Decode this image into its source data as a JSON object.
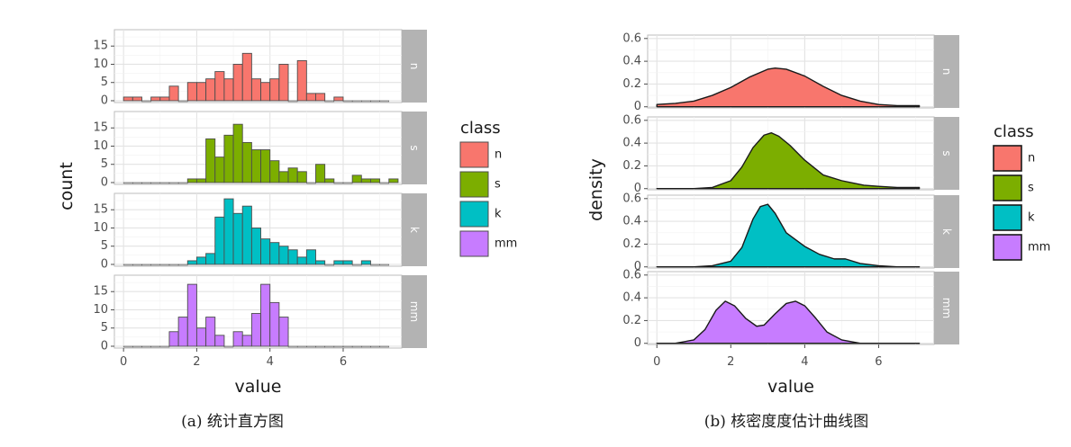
{
  "colors": {
    "n": "#f8766d",
    "s": "#7cae00",
    "k": "#00bfc4",
    "mm": "#c77cff"
  },
  "legend": {
    "title": "class",
    "items": [
      {
        "label": "n",
        "color": "#f8766d"
      },
      {
        "label": "s",
        "color": "#7cae00"
      },
      {
        "label": "k",
        "color": "#00bfc4"
      },
      {
        "label": "mm",
        "color": "#c77cff"
      }
    ]
  },
  "chart_data": [
    {
      "type": "bar",
      "caption": "(a)  统计直方图",
      "xlabel": "value",
      "ylabel": "count",
      "xlim": [
        -0.25,
        7.6
      ],
      "ylim": [
        -0.5,
        19.5
      ],
      "xticks": [
        0,
        2,
        4,
        6
      ],
      "yticks": [
        0,
        5,
        10,
        15
      ],
      "bin_width": 0.25,
      "grid": true,
      "facets": [
        {
          "name": "n",
          "color": "#f8766d",
          "bins": [
            [
              0,
              1
            ],
            [
              0.25,
              1
            ],
            [
              0.5,
              0
            ],
            [
              0.75,
              1
            ],
            [
              1,
              1
            ],
            [
              1.25,
              4
            ],
            [
              1.5,
              0
            ],
            [
              1.75,
              5
            ],
            [
              2,
              5
            ],
            [
              2.25,
              6
            ],
            [
              2.5,
              8
            ],
            [
              2.75,
              6
            ],
            [
              3,
              10
            ],
            [
              3.25,
              13
            ],
            [
              3.5,
              6
            ],
            [
              3.75,
              5
            ],
            [
              4,
              6
            ],
            [
              4.25,
              10
            ],
            [
              4.5,
              0
            ],
            [
              4.75,
              11
            ],
            [
              5,
              2
            ],
            [
              5.25,
              2
            ],
            [
              5.5,
              0
            ],
            [
              5.75,
              1
            ],
            [
              6,
              0
            ],
            [
              6.25,
              0
            ],
            [
              6.5,
              0
            ],
            [
              6.75,
              0
            ],
            [
              7,
              0
            ]
          ]
        },
        {
          "name": "s",
          "color": "#7cae00",
          "bins": [
            [
              0,
              0
            ],
            [
              0.25,
              0
            ],
            [
              0.5,
              0
            ],
            [
              0.75,
              0
            ],
            [
              1,
              0
            ],
            [
              1.25,
              0
            ],
            [
              1.5,
              0
            ],
            [
              1.75,
              1
            ],
            [
              2,
              1
            ],
            [
              2.25,
              12
            ],
            [
              2.5,
              7
            ],
            [
              2.75,
              13
            ],
            [
              3,
              16
            ],
            [
              3.25,
              11
            ],
            [
              3.5,
              9
            ],
            [
              3.75,
              9
            ],
            [
              4,
              6
            ],
            [
              4.25,
              3
            ],
            [
              4.5,
              4
            ],
            [
              4.75,
              3
            ],
            [
              5,
              0
            ],
            [
              5.25,
              5
            ],
            [
              5.5,
              1
            ],
            [
              5.75,
              0
            ],
            [
              6,
              0
            ],
            [
              6.25,
              2
            ],
            [
              6.5,
              1
            ],
            [
              6.75,
              1
            ],
            [
              7,
              0
            ],
            [
              7.25,
              1
            ]
          ]
        },
        {
          "name": "k",
          "color": "#00bfc4",
          "bins": [
            [
              0,
              0
            ],
            [
              0.25,
              0
            ],
            [
              0.5,
              0
            ],
            [
              0.75,
              0
            ],
            [
              1,
              0
            ],
            [
              1.25,
              0
            ],
            [
              1.5,
              0
            ],
            [
              1.75,
              1
            ],
            [
              2,
              2
            ],
            [
              2.25,
              3
            ],
            [
              2.5,
              13
            ],
            [
              2.75,
              18
            ],
            [
              3,
              14
            ],
            [
              3.25,
              16
            ],
            [
              3.5,
              10
            ],
            [
              3.75,
              7
            ],
            [
              4,
              6
            ],
            [
              4.25,
              5
            ],
            [
              4.5,
              4
            ],
            [
              4.75,
              2
            ],
            [
              5,
              4
            ],
            [
              5.25,
              1
            ],
            [
              5.5,
              0
            ],
            [
              5.75,
              1
            ],
            [
              6,
              1
            ],
            [
              6.25,
              0
            ],
            [
              6.5,
              1
            ],
            [
              6.75,
              0
            ],
            [
              7,
              0
            ]
          ]
        },
        {
          "name": "mm",
          "color": "#c77cff",
          "bins": [
            [
              0,
              0
            ],
            [
              0.25,
              0
            ],
            [
              0.5,
              0
            ],
            [
              0.75,
              0
            ],
            [
              1,
              0
            ],
            [
              1.25,
              4
            ],
            [
              1.5,
              8
            ],
            [
              1.75,
              17
            ],
            [
              2,
              5
            ],
            [
              2.25,
              8
            ],
            [
              2.5,
              3
            ],
            [
              2.75,
              0
            ],
            [
              3,
              4
            ],
            [
              3.25,
              3
            ],
            [
              3.5,
              9
            ],
            [
              3.75,
              17
            ],
            [
              4,
              12
            ],
            [
              4.25,
              8
            ],
            [
              4.5,
              0
            ],
            [
              4.75,
              0
            ],
            [
              5,
              0
            ],
            [
              5.25,
              0
            ],
            [
              5.5,
              0
            ],
            [
              5.75,
              0
            ],
            [
              6,
              0
            ],
            [
              6.25,
              0
            ],
            [
              6.5,
              0
            ],
            [
              6.75,
              0
            ],
            [
              7,
              0
            ]
          ]
        }
      ]
    },
    {
      "type": "area",
      "caption": "(b)  核密度度估计曲线图",
      "xlabel": "value",
      "ylabel": "density",
      "xlim": [
        -0.25,
        7.5
      ],
      "ylim": [
        -0.01,
        0.63
      ],
      "xticks": [
        0,
        2,
        4,
        6
      ],
      "yticks": [
        0,
        0.2,
        0.4,
        0.6
      ],
      "ytick_labels": [
        "0",
        "0.2",
        "0.4",
        "0.6"
      ],
      "grid": true,
      "facets": [
        {
          "name": "n",
          "color": "#f8766d",
          "x": [
            0,
            0.5,
            1,
            1.5,
            2,
            2.5,
            3,
            3.2,
            3.5,
            4,
            4.5,
            5,
            5.5,
            6,
            6.5,
            7.1
          ],
          "y": [
            0.02,
            0.03,
            0.05,
            0.1,
            0.17,
            0.26,
            0.33,
            0.34,
            0.33,
            0.27,
            0.18,
            0.1,
            0.05,
            0.02,
            0.01,
            0.01
          ]
        },
        {
          "name": "s",
          "color": "#7cae00",
          "x": [
            0,
            0.5,
            1,
            1.5,
            2,
            2.3,
            2.6,
            2.9,
            3.1,
            3.3,
            3.6,
            4,
            4.5,
            5,
            5.3,
            5.6,
            6,
            6.5,
            7.1
          ],
          "y": [
            0,
            0,
            0,
            0.01,
            0.07,
            0.19,
            0.36,
            0.47,
            0.49,
            0.46,
            0.38,
            0.25,
            0.12,
            0.07,
            0.05,
            0.03,
            0.02,
            0.01,
            0.01
          ]
        },
        {
          "name": "k",
          "color": "#00bfc4",
          "x": [
            0,
            0.5,
            1,
            1.5,
            2,
            2.3,
            2.6,
            2.8,
            3,
            3.2,
            3.5,
            4,
            4.4,
            4.8,
            5.1,
            5.5,
            6,
            6.5,
            7.1
          ],
          "y": [
            0,
            0,
            0,
            0.01,
            0.05,
            0.17,
            0.42,
            0.53,
            0.55,
            0.47,
            0.3,
            0.18,
            0.11,
            0.07,
            0.07,
            0.03,
            0.01,
            0,
            0
          ]
        },
        {
          "name": "mm",
          "color": "#c77cff",
          "x": [
            0,
            0.5,
            1,
            1.3,
            1.6,
            1.85,
            2.1,
            2.4,
            2.7,
            2.9,
            3.2,
            3.5,
            3.75,
            4,
            4.3,
            4.6,
            5,
            5.5,
            6,
            6.5,
            7.1
          ],
          "y": [
            0,
            0,
            0.03,
            0.12,
            0.29,
            0.37,
            0.33,
            0.22,
            0.15,
            0.16,
            0.26,
            0.35,
            0.37,
            0.33,
            0.22,
            0.1,
            0.03,
            0,
            0,
            0,
            0
          ]
        }
      ]
    }
  ]
}
